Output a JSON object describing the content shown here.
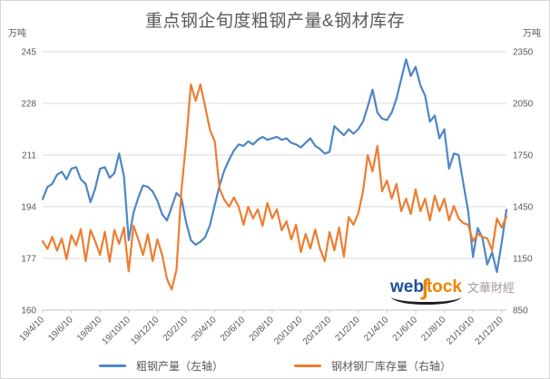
{
  "title": "重点钢企旬度粗钢产量&钢材库存",
  "left_axis": {
    "unit": "万吨",
    "ticks": [
      245,
      228,
      211,
      194,
      177,
      160
    ]
  },
  "right_axis": {
    "unit": "万吨",
    "ticks": [
      2350,
      2050,
      1750,
      1450,
      1150,
      850
    ]
  },
  "x_axis": {
    "labels": [
      "19/4/10",
      "19/6/10",
      "19/8/10",
      "19/10/10",
      "19/12/10",
      "20/2/10",
      "20/4/10",
      "20/6/10",
      "20/8/10",
      "20/10/10",
      "20/12/10",
      "21/2/10",
      "21/4/10",
      "21/6/10",
      "21/8/10",
      "21/10/10",
      "21/12/10"
    ],
    "label_every": 6
  },
  "legend": {
    "crude_steel": "粗钢产量（左轴）",
    "inventory": "钢材钢厂库存量（右轴）"
  },
  "watermark": {
    "web": "web",
    "s_glyph": "∫",
    "tock": "tock",
    "cn": "文華財經"
  },
  "colors": {
    "crude_steel": "#4e86c5",
    "inventory": "#ed7d31",
    "grid": "#d9d9d9",
    "axis_line": "#c6c6c6",
    "text": "#595959",
    "title_text": "#595959"
  },
  "chart_data": {
    "type": "line",
    "title": "重点钢企旬度粗钢产量&钢材库存",
    "left_ylim": [
      160,
      245
    ],
    "right_ylim": [
      850,
      2350
    ],
    "grid": "horizontal-only",
    "legend_position": "bottom",
    "series": [
      {
        "name": "粗钢产量（左轴）",
        "axis": "left",
        "color": "#4e86c5",
        "values": [
          196.5,
          200.5,
          201.5,
          204.5,
          205.5,
          203,
          206.5,
          207,
          203,
          201.5,
          195.5,
          200,
          206.5,
          207,
          203.5,
          205,
          211.5,
          204,
          183,
          192,
          197,
          201,
          200.5,
          199,
          196,
          191.5,
          189.5,
          194,
          198.5,
          197,
          189,
          183,
          181.5,
          182.5,
          184,
          188,
          194.5,
          201,
          206,
          209.5,
          212.5,
          214.5,
          214,
          215.5,
          214.5,
          216,
          217,
          216,
          216.5,
          217,
          216,
          216.5,
          215,
          214.5,
          213.5,
          215,
          216.5,
          214,
          213,
          211.5,
          212,
          220.5,
          219,
          217.5,
          219.5,
          218,
          219.5,
          222,
          227,
          232.5,
          225,
          223,
          222.5,
          225,
          229.5,
          236,
          242.5,
          237,
          240,
          234,
          230.5,
          222,
          224,
          216.5,
          219.5,
          206.5,
          211.5,
          211,
          201.5,
          192.5,
          177.5,
          187,
          183.5,
          175,
          179,
          172.5,
          182,
          193
        ]
      },
      {
        "name": "钢材钢厂库存量（右轴）",
        "axis": "right",
        "color": "#ed7d31",
        "values": [
          1250,
          1205,
          1275,
          1195,
          1265,
          1145,
          1285,
          1225,
          1320,
          1135,
          1315,
          1250,
          1170,
          1305,
          1130,
          1315,
          1235,
          1330,
          1075,
          1340,
          1260,
          1170,
          1290,
          1135,
          1260,
          1170,
          1030,
          970,
          1085,
          1540,
          1820,
          2160,
          2065,
          2160,
          2030,
          1895,
          1830,
          1555,
          1490,
          1450,
          1505,
          1450,
          1345,
          1450,
          1382,
          1434,
          1339,
          1471,
          1382,
          1434,
          1313,
          1366,
          1260,
          1345,
          1187,
          1292,
          1208,
          1318,
          1208,
          1134,
          1303,
          1197,
          1329,
          1160,
          1390,
          1345,
          1410,
          1540,
          1750,
          1655,
          1803,
          1539,
          1602,
          1497,
          1582,
          1424,
          1497,
          1408,
          1550,
          1424,
          1497,
          1371,
          1513,
          1424,
          1497,
          1371,
          1455,
          1382,
          1355,
          1345,
          1250,
          1292,
          1275,
          1266,
          1197,
          1381,
          1329,
          1392
        ]
      }
    ]
  }
}
